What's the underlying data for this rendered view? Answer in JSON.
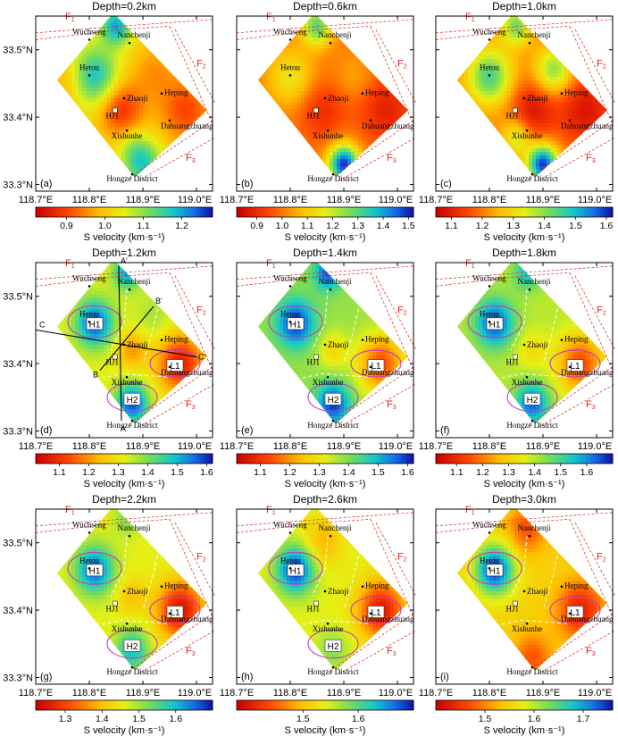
{
  "chart_data": [
    {
      "type": "heatmap",
      "panel_label": "(a)",
      "title": "Depth=0.2km",
      "colorbar": {
        "label": "S velocity (km·s⁻¹)",
        "ticks": [
          0.9,
          1.0,
          1.1,
          1.2
        ],
        "range": [
          0.82,
          1.28
        ]
      },
      "field": {
        "base": 1.02,
        "anomalies": [
          [
            118.81,
            33.46,
            0.17,
            0.03
          ],
          [
            118.86,
            33.41,
            -0.14,
            0.03
          ],
          [
            118.98,
            33.41,
            -0.12,
            0.035
          ],
          [
            118.9,
            33.33,
            0.15,
            0.025
          ],
          [
            118.85,
            33.535,
            0.18,
            0.02
          ],
          [
            118.76,
            33.45,
            -0.05,
            0.03
          ],
          [
            118.92,
            33.47,
            -0.06,
            0.03
          ],
          [
            118.88,
            33.36,
            0.05,
            0.02
          ]
        ]
      }
    },
    {
      "type": "heatmap",
      "panel_label": "(b)",
      "title": "Depth=0.6km",
      "colorbar": {
        "label": "S velocity (km·s⁻¹)",
        "ticks": [
          0.9,
          1.0,
          1.1,
          1.2,
          1.3,
          1.4,
          1.5
        ],
        "range": [
          0.82,
          1.52
        ]
      },
      "field": {
        "base": 1.0,
        "anomalies": [
          [
            118.8,
            33.46,
            0.15,
            0.03
          ],
          [
            118.86,
            33.41,
            -0.1,
            0.03
          ],
          [
            118.98,
            33.41,
            -0.12,
            0.035
          ],
          [
            118.9,
            33.33,
            0.5,
            0.02
          ],
          [
            118.85,
            33.535,
            0.3,
            0.02
          ],
          [
            118.92,
            33.46,
            0.05,
            0.025
          ]
        ]
      }
    },
    {
      "type": "heatmap",
      "panel_label": "(c)",
      "title": "Depth=1.0km",
      "colorbar": {
        "label": "S velocity (km·s⁻¹)",
        "ticks": [
          1.1,
          1.2,
          1.3,
          1.4,
          1.5,
          1.6
        ],
        "range": [
          1.05,
          1.62
        ]
      },
      "field": {
        "base": 1.2,
        "anomalies": [
          [
            118.8,
            33.46,
            0.25,
            0.03
          ],
          [
            118.88,
            33.41,
            -0.12,
            0.03
          ],
          [
            118.98,
            33.41,
            -0.12,
            0.035
          ],
          [
            118.9,
            33.33,
            0.4,
            0.02
          ],
          [
            118.85,
            33.535,
            0.22,
            0.02
          ],
          [
            118.92,
            33.47,
            0.2,
            0.025
          ],
          [
            118.85,
            33.37,
            0.15,
            0.02
          ]
        ]
      }
    },
    {
      "type": "heatmap",
      "panel_label": "(d)",
      "title": "Depth=1.2km",
      "colorbar": {
        "label": "S velocity (km·s⁻¹)",
        "ticks": [
          1.1,
          1.2,
          1.3,
          1.4,
          1.5,
          1.6
        ],
        "range": [
          1.02,
          1.62
        ]
      },
      "field": {
        "base": 1.32,
        "anomalies": [
          [
            118.81,
            33.46,
            0.26,
            0.025
          ],
          [
            118.88,
            33.34,
            0.26,
            0.022
          ],
          [
            118.97,
            33.4,
            -0.25,
            0.03
          ],
          [
            118.88,
            33.42,
            -0.12,
            0.02
          ],
          [
            118.87,
            33.535,
            0.2,
            0.018
          ],
          [
            118.92,
            33.47,
            0.05,
            0.025
          ]
        ]
      },
      "ellipses": [
        {
          "name": "H1",
          "center": [
            118.81,
            33.462
          ]
        },
        {
          "name": "H2",
          "center": [
            118.88,
            33.35
          ]
        },
        {
          "name": "L1",
          "center": [
            118.96,
            33.4
          ]
        }
      ],
      "sections": [
        {
          "start": "A",
          "end": "A'"
        },
        {
          "start": "B",
          "end": "B'"
        },
        {
          "start": "C",
          "end": "C'"
        }
      ]
    },
    {
      "type": "heatmap",
      "panel_label": "(e)",
      "title": "Depth=1.4km",
      "colorbar": {
        "label": "S velocity (km·s⁻¹)",
        "ticks": [
          1.1,
          1.2,
          1.3,
          1.4,
          1.5,
          1.6
        ],
        "range": [
          1.02,
          1.62
        ]
      },
      "field": {
        "base": 1.38,
        "anomalies": [
          [
            118.81,
            33.46,
            0.22,
            0.025
          ],
          [
            118.88,
            33.34,
            0.22,
            0.022
          ],
          [
            118.97,
            33.4,
            -0.25,
            0.03
          ],
          [
            118.88,
            33.42,
            -0.1,
            0.02
          ],
          [
            118.87,
            33.535,
            0.2,
            0.018
          ]
        ]
      },
      "ellipses": [
        {
          "name": "H1",
          "center": [
            118.81,
            33.462
          ]
        },
        {
          "name": "H2",
          "center": [
            118.88,
            33.35
          ]
        },
        {
          "name": "L1",
          "center": [
            118.96,
            33.4
          ]
        }
      ]
    },
    {
      "type": "heatmap",
      "panel_label": "(f)",
      "title": "Depth=1.8km",
      "colorbar": {
        "label": "S velocity (km·s⁻¹)",
        "ticks": [
          1.1,
          1.2,
          1.3,
          1.4,
          1.5,
          1.6
        ],
        "range": [
          1.02,
          1.7
        ]
      },
      "field": {
        "base": 1.4,
        "anomalies": [
          [
            118.81,
            33.46,
            0.26,
            0.025
          ],
          [
            118.88,
            33.34,
            0.24,
            0.022
          ],
          [
            118.97,
            33.4,
            -0.26,
            0.03
          ],
          [
            118.88,
            33.42,
            -0.08,
            0.02
          ],
          [
            118.87,
            33.535,
            0.15,
            0.018
          ]
        ]
      },
      "ellipses": [
        {
          "name": "H1",
          "center": [
            118.81,
            33.462
          ]
        },
        {
          "name": "H2",
          "center": [
            118.88,
            33.35
          ]
        },
        {
          "name": "L1",
          "center": [
            118.96,
            33.4
          ]
        }
      ]
    },
    {
      "type": "heatmap",
      "panel_label": "(g)",
      "title": "Depth=2.2km",
      "colorbar": {
        "label": "S velocity (km·s⁻¹)",
        "ticks": [
          1.3,
          1.4,
          1.5,
          1.6
        ],
        "range": [
          1.22,
          1.7
        ]
      },
      "field": {
        "base": 1.46,
        "anomalies": [
          [
            118.81,
            33.46,
            0.2,
            0.025
          ],
          [
            118.88,
            33.34,
            0.14,
            0.022
          ],
          [
            118.97,
            33.4,
            -0.22,
            0.03
          ],
          [
            118.88,
            33.42,
            -0.06,
            0.02
          ],
          [
            118.87,
            33.535,
            0.06,
            0.018
          ]
        ]
      },
      "ellipses": [
        {
          "name": "H1",
          "center": [
            118.81,
            33.462
          ]
        },
        {
          "name": "H2",
          "center": [
            118.88,
            33.35
          ]
        },
        {
          "name": "L1",
          "center": [
            118.96,
            33.4
          ]
        }
      ]
    },
    {
      "type": "heatmap",
      "panel_label": "(h)",
      "title": "Depth=2.6km",
      "colorbar": {
        "label": "S velocity (km·s⁻¹)",
        "ticks": [
          1.5,
          1.6
        ],
        "range": [
          1.38,
          1.7
        ]
      },
      "field": {
        "base": 1.54,
        "anomalies": [
          [
            118.81,
            33.46,
            0.15,
            0.025
          ],
          [
            118.88,
            33.34,
            0.04,
            0.022
          ],
          [
            118.97,
            33.4,
            -0.14,
            0.03
          ],
          [
            118.86,
            33.5,
            -0.05,
            0.025
          ]
        ]
      },
      "ellipses": [
        {
          "name": "H1",
          "center": [
            118.81,
            33.462
          ]
        },
        {
          "name": "H2",
          "center": [
            118.88,
            33.35
          ]
        },
        {
          "name": "L1",
          "center": [
            118.96,
            33.4
          ]
        }
      ]
    },
    {
      "type": "heatmap",
      "panel_label": "(i)",
      "title": "Depth=3.0km",
      "colorbar": {
        "label": "S velocity (km·s⁻¹)",
        "ticks": [
          1.5,
          1.6,
          1.7
        ],
        "range": [
          1.4,
          1.76
        ]
      },
      "field": {
        "base": 1.55,
        "anomalies": [
          [
            118.81,
            33.46,
            0.2,
            0.025
          ],
          [
            118.88,
            33.33,
            -0.08,
            0.025
          ],
          [
            118.97,
            33.4,
            -0.12,
            0.03
          ],
          [
            118.87,
            33.52,
            -0.08,
            0.025
          ]
        ]
      },
      "ellipses": [
        {
          "name": "H1",
          "center": [
            118.81,
            33.462
          ]
        },
        {
          "name": "L1",
          "center": [
            118.96,
            33.4
          ]
        }
      ]
    }
  ],
  "axes": {
    "x_ticks": [
      118.7,
      118.8,
      118.9,
      119.0
    ],
    "x_labels": [
      "118.7°E",
      "118.8°E",
      "118.9°E",
      "119.0°E"
    ],
    "y_ticks": [
      33.3,
      33.4,
      33.5
    ],
    "y_labels": [
      "33.3°N",
      "33.4°N",
      "33.5°N"
    ],
    "xlim": [
      118.7,
      119.03
    ],
    "ylim": [
      33.29,
      33.55
    ]
  },
  "region_polygon": [
    [
      118.845,
      33.555
    ],
    [
      119.02,
      33.41
    ],
    [
      118.885,
      33.31
    ],
    [
      118.74,
      33.455
    ]
  ],
  "places": [
    {
      "name": "Wuchseng",
      "lon": 118.8,
      "lat": 33.515,
      "dx": 0,
      "dy": -6,
      "anchor": "middle"
    },
    {
      "name": "Nanchenji",
      "lon": 118.875,
      "lat": 33.51,
      "dx": 5,
      "dy": -6,
      "anchor": "middle"
    },
    {
      "name": "Hetou",
      "lon": 118.8,
      "lat": 33.462,
      "dx": 0,
      "dy": -6,
      "anchor": "middle"
    },
    {
      "name": "Zhaoji",
      "lon": 118.865,
      "lat": 33.428,
      "dx": 3,
      "dy": 3,
      "anchor": "start"
    },
    {
      "name": "Heping",
      "lon": 118.935,
      "lat": 33.435,
      "dx": 3,
      "dy": 2,
      "anchor": "start"
    },
    {
      "name": "HJ1",
      "lon": 118.848,
      "lat": 33.41,
      "dx": -3,
      "dy": 9,
      "anchor": "middle"
    },
    {
      "name": "Xishunhe",
      "lon": 118.87,
      "lat": 33.38,
      "dx": 0,
      "dy": 9,
      "anchor": "middle"
    },
    {
      "name": "Dahuangzhuang",
      "lon": 118.95,
      "lat": 33.395,
      "dx": -10,
      "dy": 9,
      "anchor": "start"
    },
    {
      "name": "Hongze District",
      "lon": 118.88,
      "lat": 33.315,
      "dx": 0,
      "dy": 8,
      "anchor": "middle"
    }
  ],
  "fault_labels": [
    "F",
    "F",
    "F"
  ],
  "fault_subscripts": [
    "1",
    "2",
    "3"
  ],
  "colors": {
    "fault": "#e02020",
    "ellipse": "#c03cc0",
    "dash_white": "#ffffff"
  }
}
